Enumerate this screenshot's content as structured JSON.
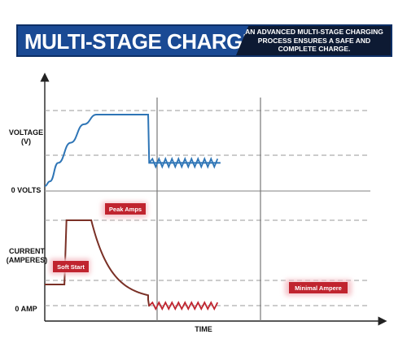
{
  "banner": {
    "title": "MULTI-STAGE CHARGE",
    "subtitle_lines": [
      "AN ADVANCED MULTI-STAGE CHARGING",
      "PROCESS ENSURES A SAFE AND",
      "COMPLETE CHARGE."
    ]
  },
  "colors": {
    "banner": "#1a4a94",
    "banner_dark": "#0d1a33",
    "voltage": "#2e75b6",
    "current": "#7a3026",
    "callout_fill": "#c0242f",
    "callout_glow": "#f5c6cc",
    "zigzag_current": "#c0242f"
  },
  "labels": {
    "voltage_lines": [
      "VOLTAGE",
      "(V)"
    ],
    "zero_volts": "0 VOLTS",
    "current_lines": [
      "CURRENT",
      "(AMPERES)"
    ],
    "zero_amp": "0 AMP",
    "time": "TIME"
  },
  "chart_data": {
    "type": "line",
    "title": "MULTI-STAGE CHARGE",
    "xlabel": "TIME",
    "stages": [
      "Soft Start",
      "Peak Amps",
      "Minimal Ampere"
    ],
    "voltage": {
      "ylabel": "VOLTAGE (V)",
      "zero_label": "0 VOLTS",
      "x": [
        0.0,
        0.05,
        0.13,
        0.25,
        0.38,
        0.5,
        1.0,
        1.001,
        1.01,
        1.7
      ],
      "y": [
        0.06,
        0.12,
        0.35,
        0.6,
        0.83,
        0.95,
        0.95,
        0.9,
        0.35,
        0.35
      ],
      "float_ripple": "maintenance zigzag after t=1.0"
    },
    "current": {
      "ylabel": "CURRENT (AMPERES)",
      "zero_label": "0 AMP",
      "x": [
        0.0,
        0.19,
        0.21,
        0.45,
        0.55,
        0.7,
        0.85,
        1.0,
        1.01,
        1.7
      ],
      "y": [
        0.28,
        0.28,
        0.95,
        0.95,
        0.6,
        0.32,
        0.17,
        0.12,
        0.05,
        0.05
      ],
      "float_ripple": "minimal ampere zigzag after t=1.0"
    },
    "annotations": [
      {
        "text": "Peak Amps",
        "series": "current",
        "stage": 2
      },
      {
        "text": "Soft Start",
        "series": "current",
        "stage": 1
      },
      {
        "text": "Minimal Ampere",
        "series": "current",
        "stage": 3
      }
    ],
    "grid": "dashed horizontal reference lines",
    "phase_dividers": 2
  }
}
